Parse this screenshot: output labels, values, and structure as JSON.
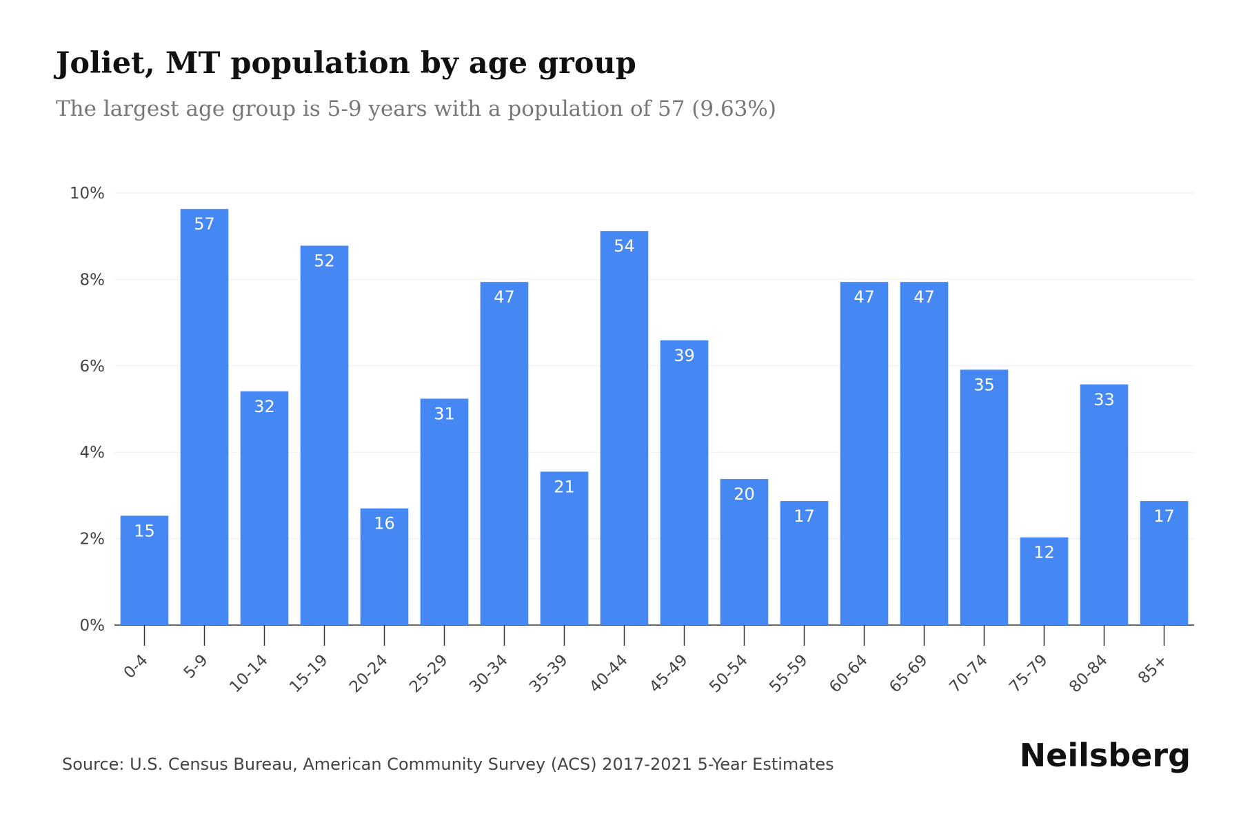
{
  "chart_data": {
    "type": "bar",
    "title": "Joliet, MT population by age group",
    "subtitle": "The largest age group is 5-9 years with a population of 57 (9.63%)",
    "categories": [
      "0-4",
      "5-9",
      "10-14",
      "15-19",
      "20-24",
      "25-29",
      "30-34",
      "35-39",
      "40-44",
      "45-49",
      "50-54",
      "55-59",
      "60-64",
      "65-69",
      "70-74",
      "75-79",
      "80-84",
      "85+"
    ],
    "values": [
      2.53,
      9.63,
      5.41,
      8.78,
      2.7,
      5.24,
      7.94,
      3.55,
      9.12,
      6.59,
      3.38,
      2.87,
      7.94,
      7.94,
      5.91,
      2.03,
      5.57,
      2.87
    ],
    "population": [
      15,
      57,
      32,
      52,
      16,
      31,
      47,
      21,
      54,
      39,
      20,
      17,
      47,
      47,
      35,
      12,
      33,
      17
    ],
    "color": "#4587f3",
    "ylim": [
      0,
      10
    ],
    "yticks": [
      {
        "value": 0,
        "label": "0%"
      },
      {
        "value": 2,
        "label": "2%"
      },
      {
        "value": 4,
        "label": "4%"
      },
      {
        "value": 6,
        "label": "6%"
      },
      {
        "value": 8,
        "label": "8%"
      },
      {
        "value": 10,
        "label": "10%"
      }
    ],
    "grid": true,
    "source": "Source: U.S. Census Bureau, American Community Survey (ACS) 2017-2021 5-Year Estimates",
    "brand": "Neilsberg"
  }
}
